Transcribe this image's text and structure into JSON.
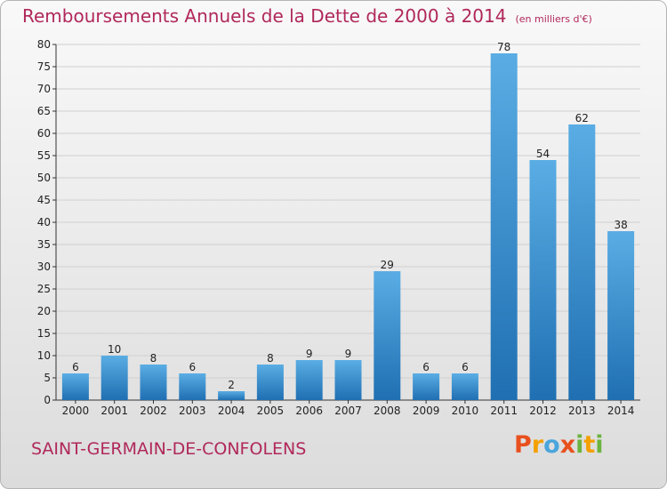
{
  "title": {
    "main": "Remboursements Annuels de la Dette de 2000 à 2014",
    "unit": "(en milliers d'€)"
  },
  "commune": "SAINT-GERMAIN-DE-CONFOLENS",
  "logo": {
    "letters": [
      "P",
      "r",
      "o",
      "x",
      "i",
      "t",
      "i"
    ]
  },
  "colors": {
    "title": "#b0285a",
    "bar_light": "#5aade4",
    "bar_dark": "#1f6fb2",
    "grid": "#d0d0d0"
  },
  "chart_data": {
    "type": "bar",
    "categories": [
      "2000",
      "2001",
      "2002",
      "2003",
      "2004",
      "2005",
      "2006",
      "2007",
      "2008",
      "2009",
      "2010",
      "2011",
      "2012",
      "2013",
      "2014"
    ],
    "values": [
      6,
      10,
      8,
      6,
      2,
      8,
      9,
      9,
      29,
      6,
      6,
      78,
      54,
      62,
      38
    ],
    "ylim": [
      0,
      80
    ],
    "yticks": [
      0,
      5,
      10,
      15,
      20,
      25,
      30,
      35,
      40,
      45,
      50,
      55,
      60,
      65,
      70,
      75,
      80
    ],
    "grid": true,
    "xlabel": "",
    "ylabel": ""
  }
}
